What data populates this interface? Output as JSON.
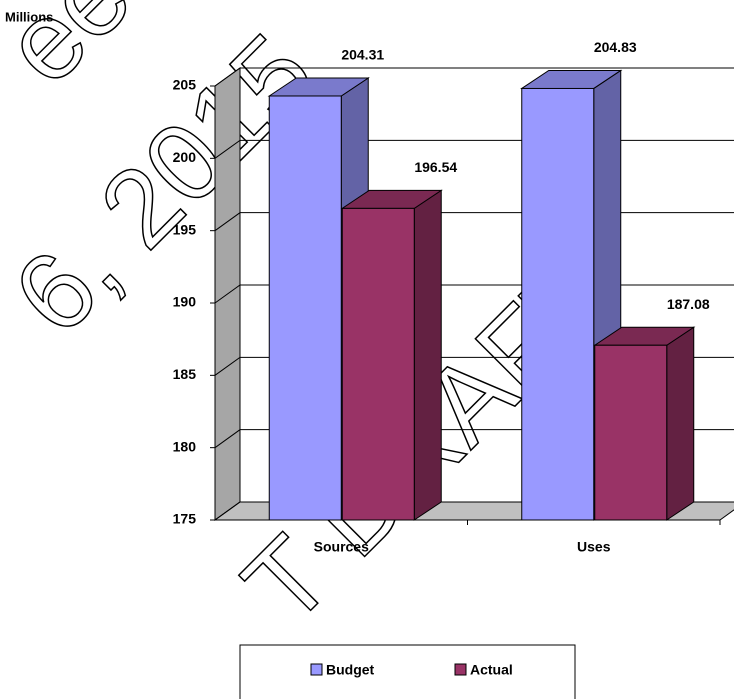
{
  "chart_data": {
    "type": "bar3d",
    "y_axis_label": "Millions",
    "categories": [
      "Sources",
      "Uses"
    ],
    "series": [
      {
        "name": "Budget",
        "color": "#9999ff",
        "values": [
          204.31,
          204.83
        ]
      },
      {
        "name": "Actual",
        "color": "#993366",
        "values": [
          196.54,
          187.08
        ]
      }
    ],
    "ylim": [
      175,
      205
    ],
    "yticks": [
      175,
      180,
      185,
      190,
      195,
      200,
      205
    ],
    "grid": true,
    "legend": "bottom",
    "watermarks": [
      "eet",
      "6, 2015",
      "T DRAFT"
    ]
  }
}
